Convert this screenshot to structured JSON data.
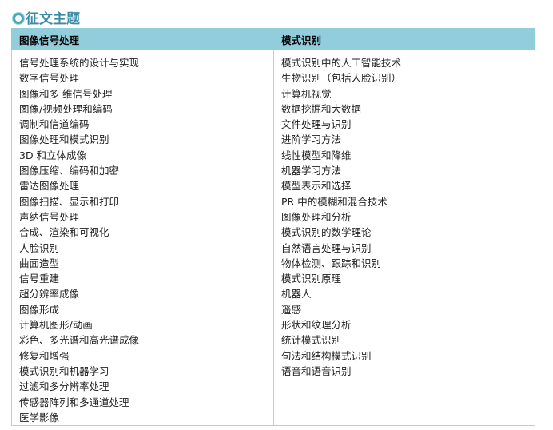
{
  "title": {
    "icon": "circle-logo-icon",
    "text": "征文主题"
  },
  "header_color": "#92cddb",
  "columns": [
    {
      "heading": "图像信号处理",
      "items": [
        "信号处理系统的设计与实现",
        "数字信号处理",
        "图像和多 维信号处理",
        "图像/视频处理和编码",
        "调制和信道编码",
        "图像处理和模式识别",
        "3D 和立体成像",
        "图像压缩、编码和加密",
        "雷达图像处理",
        "图像扫描、显示和打印",
        "声纳信号处理",
        "合成、渲染和可视化",
        "人脸识别",
        "曲面造型",
        "信号重建",
        "超分辨率成像",
        "图像形成",
        "计算机图形/动画",
        "彩色、多光谱和高光谱成像",
        "修复和增强",
        "模式识别和机器学习",
        "过滤和多分辨率处理",
        "传感器阵列和多通道处理",
        "医学影像"
      ]
    },
    {
      "heading": "模式识别",
      "items": [
        "模式识别中的人工智能技术",
        "生物识别（包括人脸识别）",
        "计算机视觉",
        "数据挖掘和大数据",
        "文件处理与识别",
        "进阶学习方法",
        "线性模型和降维",
        "机器学习方法",
        "模型表示和选择",
        "PR 中的模糊和混合技术",
        "图像处理和分析",
        "模式识别的数学理论",
        "自然语言处理与识别",
        "物体检测、跟踪和识别",
        "模式识别原理",
        "机器人",
        "遥感",
        "形状和纹理分析",
        "统计模式识别",
        "句法和结构模式识别",
        "语音和语音识别"
      ]
    }
  ]
}
